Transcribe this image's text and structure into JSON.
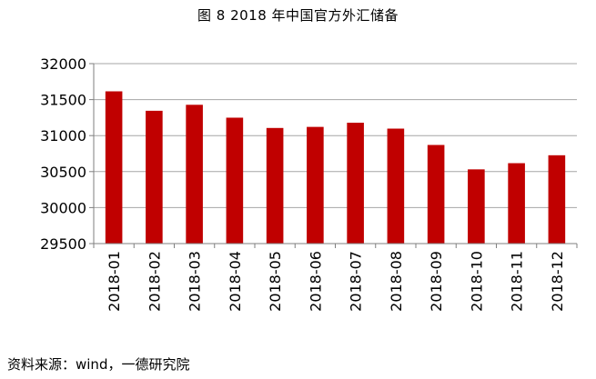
{
  "chart_data": {
    "type": "bar",
    "title": "图 8   2018 年中国官方外汇储备",
    "xlabel": "",
    "ylabel": "",
    "categories": [
      "2018-01",
      "2018-02",
      "2018-03",
      "2018-04",
      "2018-05",
      "2018-06",
      "2018-07",
      "2018-08",
      "2018-09",
      "2018-10",
      "2018-11",
      "2018-12"
    ],
    "values": [
      31615,
      31345,
      31428,
      31249,
      31106,
      31121,
      31179,
      31097,
      30870,
      30531,
      30617,
      30727
    ],
    "ylim": [
      29500,
      32000
    ],
    "yticks": [
      "29500",
      "30000",
      "30500",
      "31000",
      "31500",
      "32000"
    ],
    "grid": true,
    "legend": "none",
    "bar_color": "#C00000"
  },
  "source_note": "资料来源：wind，一德研究院"
}
